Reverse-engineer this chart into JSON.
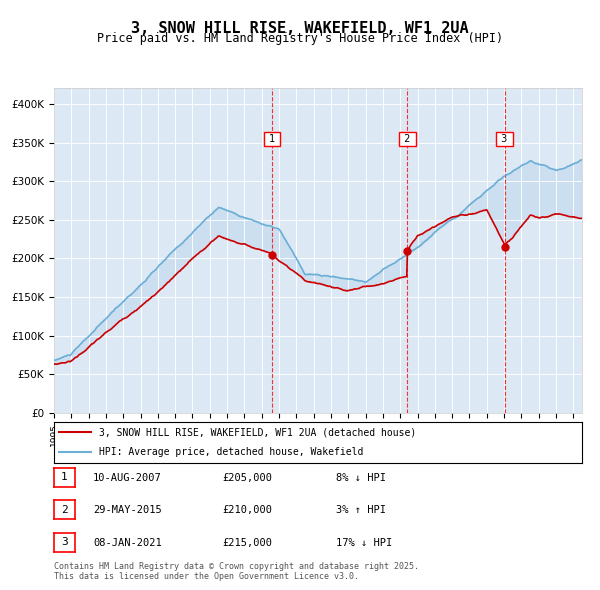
{
  "title": "3, SNOW HILL RISE, WAKEFIELD, WF1 2UA",
  "subtitle": "Price paid vs. HM Land Registry's House Price Index (HPI)",
  "hpi_label": "HPI: Average price, detached house, Wakefield",
  "property_label": "3, SNOW HILL RISE, WAKEFIELD, WF1 2UA (detached house)",
  "footnote": "Contains HM Land Registry data © Crown copyright and database right 2025.\nThis data is licensed under the Open Government Licence v3.0.",
  "transactions": [
    {
      "num": 1,
      "date": "10-AUG-2007",
      "price": 205000,
      "pct": "8%",
      "dir": "↓",
      "x_year": 2007.61
    },
    {
      "num": 2,
      "date": "29-MAY-2015",
      "price": 210000,
      "pct": "3%",
      "dir": "↑",
      "x_year": 2015.41
    },
    {
      "num": 3,
      "date": "08-JAN-2021",
      "price": 215000,
      "pct": "17%",
      "dir": "↓",
      "x_year": 2021.03
    }
  ],
  "background_color": "#dce9f5",
  "plot_bg_color": "#dce9f5",
  "hpi_color": "#6baed6",
  "property_color": "#cc0000",
  "ylim": [
    0,
    420000
  ],
  "xlim_start": 1995,
  "xlim_end": 2025.5
}
